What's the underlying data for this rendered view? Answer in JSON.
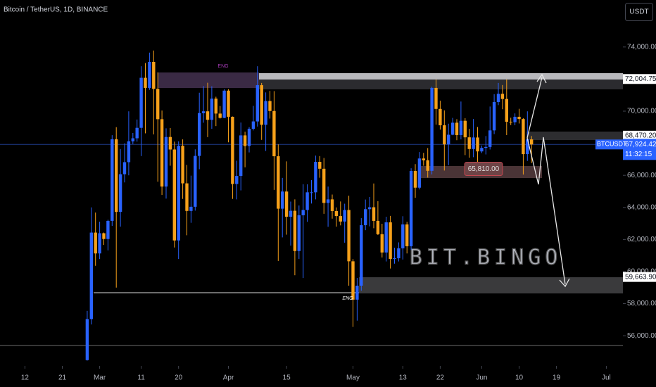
{
  "chart_data": {
    "type": "candlestick",
    "title": "Bitcoin / TetherUS, 1D, BINANCE",
    "currency": "USDT",
    "up_color": "#2962ff",
    "down_color": "#f7a11a",
    "xlim": [
      "02-06",
      "07-05"
    ],
    "ylim": [
      54120,
      76930
    ],
    "xticks": [
      {
        "value": "02-12",
        "label": "12"
      },
      {
        "value": "02-21",
        "label": "21"
      },
      {
        "value": "03-01",
        "label": "Mar"
      },
      {
        "value": "03-11",
        "label": "11"
      },
      {
        "value": "03-20",
        "label": "20"
      },
      {
        "value": "04-01",
        "label": "Apr"
      },
      {
        "value": "04-15",
        "label": "15"
      },
      {
        "value": "05-01",
        "label": "May"
      },
      {
        "value": "05-13",
        "label": "13"
      },
      {
        "value": "05-22",
        "label": "22"
      },
      {
        "value": "06-01",
        "label": "Jun"
      },
      {
        "value": "06-10",
        "label": "10"
      },
      {
        "value": "06-19",
        "label": "19"
      },
      {
        "value": "07-01",
        "label": "Jul"
      }
    ],
    "yticks": [
      {
        "value": 74000,
        "label": "74,000.00"
      },
      {
        "value": 70000,
        "label": "70,000.00"
      },
      {
        "value": 66000,
        "label": "66,000.00"
      },
      {
        "value": 64000,
        "label": "64,000.00"
      },
      {
        "value": 62000,
        "label": "62,000.00"
      },
      {
        "value": 60000,
        "label": "60,000.00"
      },
      {
        "value": 58000,
        "label": "58,000.00"
      },
      {
        "value": 56000,
        "label": "56,000.00"
      }
    ],
    "price_labels": [
      {
        "value": 72004.75,
        "label": "72,004.75"
      },
      {
        "value": 68470.2,
        "label": "68,470.20"
      },
      {
        "value": 59663.9,
        "label": "59,663.90"
      }
    ],
    "last_price": {
      "value": 67924.42,
      "label": "67,924.42"
    },
    "symbol": "BTCUSDT",
    "countdown": "11:32:15",
    "zone_label": {
      "value": 65810,
      "label": "65,810.00"
    },
    "annotations": [
      "ENG",
      "ENG",
      "BIT.BINGO"
    ],
    "x": [
      "02-27",
      "02-28",
      "02-29",
      "03-01",
      "03-02",
      "03-03",
      "03-04",
      "03-05",
      "03-06",
      "03-07",
      "03-08",
      "03-09",
      "03-10",
      "03-11",
      "03-12",
      "03-13",
      "03-14",
      "03-15",
      "03-16",
      "03-17",
      "03-18",
      "03-19",
      "03-20",
      "03-21",
      "03-22",
      "03-23",
      "03-24",
      "03-25",
      "03-26",
      "03-27",
      "03-28",
      "03-29",
      "03-30",
      "03-31",
      "04-01",
      "04-02",
      "04-03",
      "04-04",
      "04-05",
      "04-06",
      "04-07",
      "04-08",
      "04-09",
      "04-10",
      "04-11",
      "04-12",
      "04-13",
      "04-14",
      "04-15",
      "04-16",
      "04-17",
      "04-18",
      "04-19",
      "04-20",
      "04-21",
      "04-22",
      "04-23",
      "04-24",
      "04-25",
      "04-26",
      "04-27",
      "04-28",
      "04-29",
      "04-30",
      "05-01",
      "05-02",
      "05-03",
      "05-04",
      "05-05",
      "05-06",
      "05-07",
      "05-08",
      "05-09",
      "05-10",
      "05-11",
      "05-12",
      "05-13",
      "05-14",
      "05-15",
      "05-16",
      "05-17",
      "05-18",
      "05-19",
      "05-20",
      "05-21",
      "05-22",
      "05-23",
      "05-24",
      "05-25",
      "05-26",
      "05-27",
      "05-28",
      "05-29",
      "05-30",
      "05-31",
      "06-01",
      "06-02",
      "06-03",
      "06-04",
      "06-05",
      "06-06",
      "06-07",
      "06-08",
      "06-09",
      "06-10",
      "06-11",
      "06-12",
      "06-13"
    ],
    "open": [
      54480,
      57040,
      62430,
      61130,
      62390,
      62030,
      63160,
      68250,
      63720,
      66070,
      66820,
      68120,
      68310,
      68960,
      72080,
      71450,
      73070,
      71390,
      69500,
      65300,
      68390,
      67610,
      61940,
      67840,
      65500,
      63780,
      64040,
      67210,
      69880,
      69990,
      69460,
      70780,
      69850,
      69580,
      71280,
      69650,
      65460,
      65960,
      68490,
      67830,
      68900,
      69360,
      71620,
      69150,
      70630,
      70010,
      67190,
      63920,
      64990,
      63420,
      63790,
      61280,
      63510,
      63840,
      64940,
      64940,
      66840,
      66410,
      64280,
      64500,
      63770,
      63460,
      63120,
      63840,
      60640,
      58250,
      59120,
      62890,
      63890,
      64010,
      63160,
      62330,
      61190,
      63070,
      60790,
      60830,
      61450,
      62940,
      61580,
      66270,
      65230,
      67050,
      66940,
      66280,
      71450,
      70140,
      69120,
      67930,
      68530,
      69280,
      68510,
      69400,
      68370,
      67640,
      68360,
      67490,
      67710,
      67770,
      68800,
      70570,
      71080,
      70760,
      69340,
      69310,
      69650,
      69510,
      67320,
      68240
    ],
    "high": [
      57550,
      64000,
      63680,
      63110,
      62430,
      63230,
      68500,
      69000,
      67640,
      67990,
      69990,
      68640,
      69480,
      72800,
      73000,
      73650,
      73780,
      72420,
      70040,
      68930,
      68950,
      68100,
      68120,
      68240,
      66650,
      65980,
      67620,
      71150,
      71560,
      71770,
      71550,
      70900,
      70320,
      71370,
      71370,
      69670,
      66910,
      69290,
      68720,
      69000,
      70330,
      72800,
      71760,
      71170,
      71260,
      71250,
      67930,
      65840,
      66870,
      64360,
      64500,
      64120,
      65450,
      65440,
      65700,
      67230,
      67200,
      67080,
      65300,
      64800,
      64000,
      64370,
      64230,
      64730,
      60780,
      59600,
      63330,
      64490,
      64650,
      65490,
      64390,
      62980,
      63420,
      63470,
      61490,
      61820,
      63450,
      63100,
      66440,
      66700,
      67450,
      67400,
      67700,
      71520,
      71980,
      70650,
      70050,
      69220,
      69580,
      69500,
      70600,
      69560,
      68900,
      69510,
      69010,
      67860,
      68450,
      70290,
      71060,
      71760,
      71630,
      71980,
      69590,
      69860,
      70150,
      69560,
      69990,
      68450
    ],
    "low": [
      54450,
      56700,
      60360,
      60780,
      61660,
      61320,
      62850,
      59000,
      62800,
      65560,
      66000,
      67950,
      68100,
      67200,
      68620,
      71330,
      68550,
      65600,
      64780,
      64550,
      66600,
      61500,
      60780,
      64530,
      62260,
      63040,
      63800,
      66380,
      69280,
      68380,
      68900,
      69070,
      69540,
      69560,
      68060,
      64530,
      64500,
      65060,
      66500,
      67430,
      68800,
      69040,
      68210,
      67520,
      69540,
      65090,
      60660,
      62130,
      62300,
      61620,
      59770,
      60790,
      59600,
      63100,
      64240,
      64500,
      65850,
      63600,
      62790,
      63300,
      62800,
      62880,
      61800,
      59120,
      56550,
      56940,
      58810,
      62580,
      62820,
      62700,
      62280,
      60880,
      60630,
      60190,
      60490,
      60630,
      60750,
      61130,
      61350,
      64600,
      65120,
      66600,
      65860,
      66060,
      69160,
      68850,
      66300,
      66630,
      68500,
      68190,
      68240,
      67260,
      67100,
      67130,
      66670,
      67390,
      67300,
      67610,
      68570,
      70380,
      70120,
      68510,
      69130,
      69120,
      69230,
      66050,
      66900,
      66760
    ],
    "close": [
      57040,
      62430,
      61130,
      62390,
      62030,
      63160,
      68250,
      63720,
      66070,
      66820,
      68120,
      68310,
      68960,
      72080,
      71450,
      73070,
      71390,
      69500,
      65300,
      68390,
      67610,
      61940,
      67840,
      65500,
      63780,
      64040,
      67210,
      69880,
      69990,
      69460,
      70780,
      69850,
      69580,
      71280,
      69650,
      65460,
      65960,
      68490,
      67830,
      68900,
      69360,
      71620,
      69150,
      70630,
      70010,
      67190,
      63920,
      64990,
      63420,
      63790,
      61280,
      63510,
      63840,
      64940,
      64940,
      66840,
      66410,
      64280,
      64500,
      63770,
      63460,
      63120,
      63840,
      60640,
      58250,
      59120,
      62890,
      63890,
      64010,
      63160,
      62330,
      61190,
      63070,
      60790,
      60830,
      61450,
      62940,
      61580,
      66270,
      65230,
      67050,
      66940,
      66280,
      71450,
      70140,
      69120,
      67930,
      68530,
      69280,
      68510,
      69400,
      68370,
      67640,
      68360,
      67490,
      67710,
      67770,
      68800,
      70570,
      71080,
      70760,
      69340,
      69310,
      69650,
      69510,
      67320,
      68240,
      67924.42
    ]
  }
}
